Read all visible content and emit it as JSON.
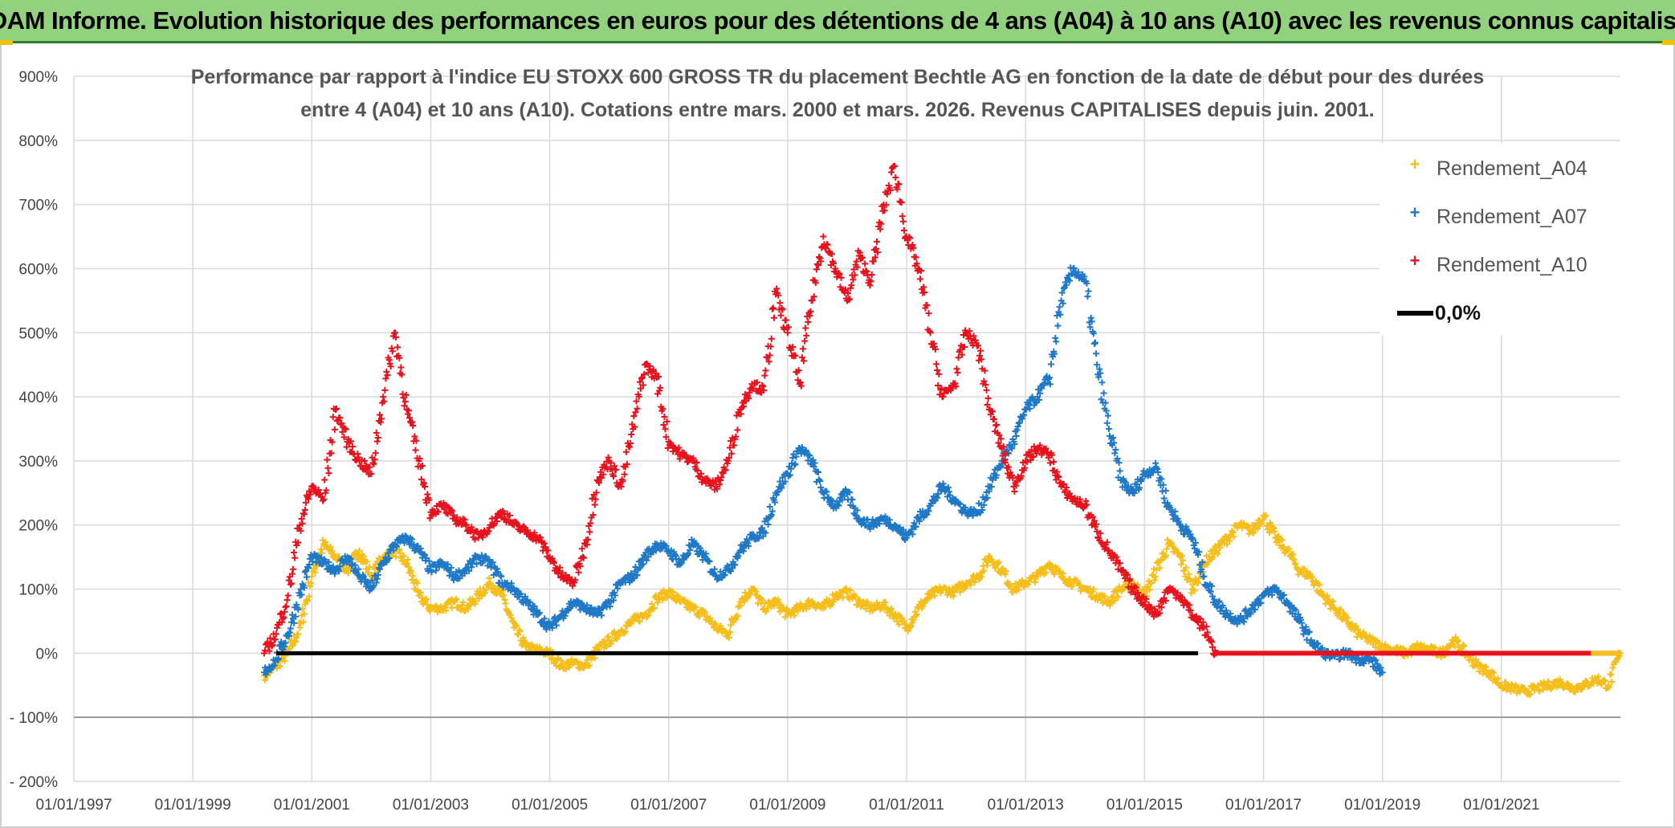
{
  "banner": {
    "title": "ADAM Informe. Evolution historique des performances en euros pour des détentions de 4 ans (A04) à 10 ans (A10) avec les revenus connus capitalisés"
  },
  "colors": {
    "banner_bg": "#92d27e",
    "a04": "#f5be1a",
    "a07": "#1f78c8",
    "a10": "#e8121c",
    "zero": "#000000"
  },
  "chart_data": {
    "type": "scatter",
    "title_line1": "Performance par rapport à l'indice EU STOXX 600 GROSS TR  du placement Bechtle AG en fonction de la date de début pour des durées",
    "title_line2": "entre 4 (A04) et 10 ans (A10). Cotations entre mars. 2000 et mars. 2026. Revenus CAPITALISES depuis juin. 2001.",
    "xlabel": "",
    "ylabel": "",
    "x_range": [
      1997.0,
      2023.0
    ],
    "ylim": [
      -200,
      900
    ],
    "y_ticks": [
      -200,
      -100,
      0,
      100,
      200,
      300,
      400,
      500,
      600,
      700,
      800,
      900
    ],
    "y_tick_labels": [
      "- 200%",
      "- 100%",
      "0%",
      "100%",
      "200%",
      "300%",
      "400%",
      "500%",
      "600%",
      "700%",
      "800%",
      "900%"
    ],
    "x_ticks": [
      1997,
      1999,
      2001,
      2003,
      2005,
      2007,
      2009,
      2011,
      2013,
      2015,
      2017,
      2019,
      2021
    ],
    "x_tick_labels": [
      "01/01/1997",
      "01/01/1999",
      "01/01/2001",
      "01/01/2003",
      "01/01/2005",
      "01/01/2007",
      "01/01/2009",
      "01/01/2011",
      "01/01/2013",
      "01/01/2015",
      "01/01/2017",
      "01/01/2019",
      "01/01/2021"
    ],
    "grid": true,
    "legend_position": "top-right",
    "series": [
      {
        "name": "Rendement_A04",
        "marker": "+",
        "x": [
          2000.2,
          2000.4,
          2000.6,
          2000.8,
          2001.0,
          2001.2,
          2001.4,
          2001.6,
          2001.8,
          2002.0,
          2002.2,
          2002.4,
          2002.6,
          2002.8,
          2003.0,
          2003.2,
          2003.4,
          2003.6,
          2003.8,
          2004.0,
          2004.2,
          2004.4,
          2004.6,
          2004.8,
          2005.0,
          2005.2,
          2005.4,
          2005.6,
          2005.8,
          2006.0,
          2006.2,
          2006.4,
          2006.6,
          2006.8,
          2007.0,
          2007.2,
          2007.4,
          2007.6,
          2007.8,
          2008.0,
          2008.2,
          2008.4,
          2008.6,
          2008.8,
          2009.0,
          2009.2,
          2009.4,
          2009.6,
          2009.8,
          2010.0,
          2010.2,
          2010.4,
          2010.6,
          2010.8,
          2011.0,
          2011.2,
          2011.4,
          2011.6,
          2011.8,
          2012.0,
          2012.2,
          2012.4,
          2012.6,
          2012.8,
          2013.0,
          2013.2,
          2013.4,
          2013.6,
          2013.8,
          2014.0,
          2014.2,
          2014.4,
          2014.6,
          2014.8,
          2015.0,
          2015.2,
          2015.4,
          2015.6,
          2015.8,
          2016.0,
          2016.2,
          2016.4,
          2016.6,
          2016.8,
          2017.0,
          2017.2,
          2017.4,
          2017.6,
          2017.8,
          2018.0,
          2018.2,
          2018.4,
          2018.6,
          2018.8,
          2019.0,
          2019.2,
          2019.4,
          2019.6,
          2019.8,
          2020.0,
          2020.2,
          2020.4,
          2020.6,
          2020.8,
          2021.0,
          2021.2,
          2021.4,
          2021.6,
          2021.8,
          2022.0,
          2022.2,
          2022.4,
          2022.6,
          2022.8,
          2023.0
        ],
        "y": [
          -35,
          -20,
          0,
          40,
          120,
          170,
          150,
          130,
          160,
          120,
          150,
          160,
          140,
          90,
          70,
          70,
          80,
          70,
          90,
          110,
          90,
          40,
          10,
          5,
          0,
          -20,
          -15,
          -20,
          5,
          20,
          35,
          50,
          60,
          85,
          95,
          80,
          70,
          60,
          40,
          30,
          80,
          100,
          70,
          80,
          60,
          70,
          80,
          70,
          90,
          95,
          80,
          70,
          75,
          60,
          40,
          70,
          90,
          100,
          95,
          110,
          120,
          150,
          130,
          100,
          110,
          120,
          140,
          120,
          110,
          100,
          90,
          80,
          100,
          110,
          90,
          130,
          170,
          150,
          100,
          140,
          160,
          180,
          200,
          190,
          215,
          180,
          160,
          130,
          120,
          90,
          70,
          50,
          30,
          20,
          10,
          5,
          0,
          10,
          5,
          0,
          20,
          0,
          -20,
          -30,
          -50,
          -55,
          -60,
          -55,
          -50,
          -45,
          -55,
          -50,
          -40,
          -50,
          0
        ]
      },
      {
        "name": "Rendement_A07",
        "marker": "+",
        "x": [
          2000.2,
          2000.4,
          2000.6,
          2000.8,
          2001.0,
          2001.2,
          2001.4,
          2001.6,
          2001.8,
          2002.0,
          2002.2,
          2002.4,
          2002.6,
          2002.8,
          2003.0,
          2003.2,
          2003.4,
          2003.6,
          2003.8,
          2004.0,
          2004.2,
          2004.4,
          2004.6,
          2004.8,
          2005.0,
          2005.2,
          2005.4,
          2005.6,
          2005.8,
          2006.0,
          2006.2,
          2006.4,
          2006.6,
          2006.8,
          2007.0,
          2007.2,
          2007.4,
          2007.6,
          2007.8,
          2008.0,
          2008.2,
          2008.4,
          2008.6,
          2008.8,
          2009.0,
          2009.2,
          2009.4,
          2009.6,
          2009.8,
          2010.0,
          2010.2,
          2010.4,
          2010.6,
          2010.8,
          2011.0,
          2011.2,
          2011.4,
          2011.6,
          2011.8,
          2012.0,
          2012.2,
          2012.4,
          2012.6,
          2012.8,
          2013.0,
          2013.2,
          2013.4,
          2013.6,
          2013.8,
          2014.0,
          2014.2,
          2014.4,
          2014.6,
          2014.8,
          2015.0,
          2015.2,
          2015.4,
          2015.6,
          2015.8,
          2016.0,
          2016.2,
          2016.4,
          2016.6,
          2016.8,
          2017.0,
          2017.2,
          2017.4,
          2017.6,
          2017.8,
          2018.0,
          2018.2,
          2018.4,
          2018.6,
          2018.8,
          2019.0
        ],
        "y": [
          -30,
          -10,
          30,
          90,
          150,
          140,
          130,
          150,
          120,
          100,
          140,
          170,
          180,
          160,
          130,
          140,
          120,
          130,
          150,
          140,
          110,
          100,
          80,
          60,
          40,
          60,
          80,
          70,
          60,
          80,
          110,
          120,
          150,
          170,
          160,
          140,
          170,
          150,
          120,
          130,
          160,
          180,
          190,
          250,
          280,
          320,
          300,
          250,
          230,
          250,
          210,
          200,
          210,
          200,
          180,
          210,
          230,
          260,
          240,
          220,
          220,
          260,
          300,
          330,
          380,
          400,
          430,
          550,
          600,
          580,
          450,
          350,
          270,
          250,
          280,
          290,
          230,
          200,
          180,
          120,
          80,
          60,
          50,
          70,
          90,
          100,
          80,
          50,
          20,
          0,
          -5,
          0,
          -10,
          -10,
          -30
        ]
      },
      {
        "name": "Rendement_A10",
        "marker": "+",
        "x": [
          2000.2,
          2000.4,
          2000.6,
          2000.8,
          2001.0,
          2001.2,
          2001.4,
          2001.6,
          2001.8,
          2002.0,
          2002.2,
          2002.4,
          2002.6,
          2002.8,
          2003.0,
          2003.2,
          2003.4,
          2003.6,
          2003.8,
          2004.0,
          2004.2,
          2004.4,
          2004.6,
          2004.8,
          2005.0,
          2005.2,
          2005.4,
          2005.6,
          2005.8,
          2006.0,
          2006.2,
          2006.4,
          2006.6,
          2006.8,
          2007.0,
          2007.2,
          2007.4,
          2007.6,
          2007.8,
          2008.0,
          2008.2,
          2008.4,
          2008.6,
          2008.8,
          2009.0,
          2009.2,
          2009.4,
          2009.6,
          2009.8,
          2010.0,
          2010.2,
          2010.4,
          2010.6,
          2010.8,
          2011.0,
          2011.2,
          2011.4,
          2011.6,
          2011.8,
          2012.0,
          2012.2,
          2012.4,
          2012.6,
          2012.8,
          2013.0,
          2013.2,
          2013.4,
          2013.6,
          2013.8,
          2014.0,
          2014.2,
          2014.4,
          2014.6,
          2014.8,
          2015.0,
          2015.2,
          2015.4,
          2015.6,
          2015.8,
          2016.0,
          2016.2
        ],
        "y": [
          0,
          30,
          90,
          200,
          260,
          240,
          380,
          330,
          300,
          280,
          400,
          500,
          380,
          300,
          220,
          230,
          210,
          200,
          180,
          200,
          220,
          200,
          190,
          180,
          150,
          120,
          110,
          170,
          270,
          300,
          260,
          350,
          450,
          430,
          330,
          310,
          300,
          270,
          260,
          300,
          380,
          420,
          410,
          560,
          500,
          420,
          550,
          650,
          600,
          550,
          620,
          580,
          690,
          760,
          650,
          600,
          500,
          400,
          420,
          500,
          480,
          380,
          320,
          260,
          300,
          320,
          310,
          260,
          240,
          230,
          190,
          160,
          130,
          100,
          80,
          60,
          100,
          90,
          60,
          40,
          0
        ]
      }
    ],
    "reference_lines": [
      {
        "name": "0,0%",
        "y": 0,
        "x": [
          2000.4,
          2015.9
        ],
        "color": "#000000"
      },
      {
        "name": "Rendement_A10",
        "y": 0,
        "x": [
          2016.2,
          2023.0
        ],
        "color": "#e8121c"
      }
    ]
  }
}
